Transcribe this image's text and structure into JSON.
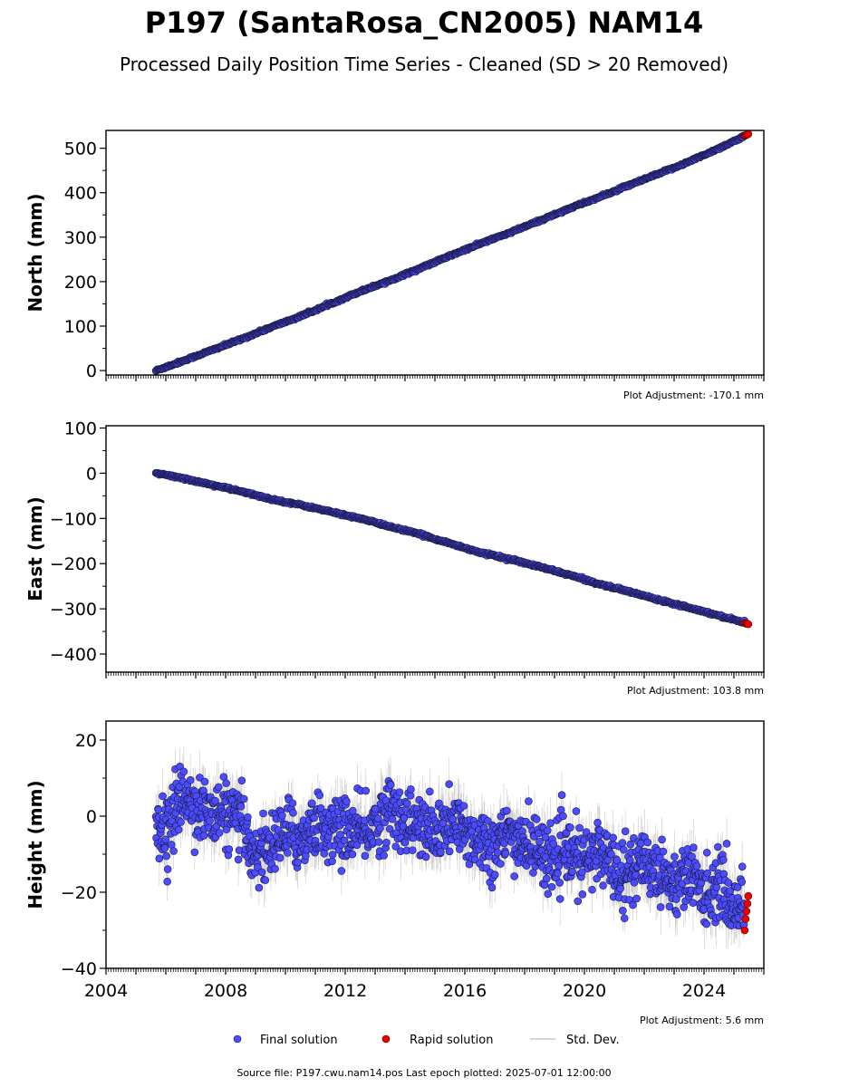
{
  "title": "P197 (SantaRosa_CN2005) NAM14",
  "subtitle": "Processed Daily Position Time Series - Cleaned (SD > 20 Removed)",
  "source_note": "Source file: P197.cwu.nam14.pos  Last epoch plotted: 2025-07-01 12:00:00",
  "legend": {
    "final": "Final solution",
    "rapid": "Rapid solution",
    "std": "Std. Dev."
  },
  "colors": {
    "final": "#4b4bff",
    "final_edge": "#1a1a40",
    "rapid": "#ee0000",
    "std": "#b4b4b4"
  },
  "chart_data": [
    {
      "type": "scatter",
      "ylabel": "North (mm)",
      "adjustment": "Plot Adjustment: -170.1 mm",
      "xlim": [
        2004,
        2026
      ],
      "ylim": [
        -10,
        540
      ],
      "yticks": [
        0,
        100,
        200,
        300,
        400,
        500
      ],
      "ytick_labels": [
        "0",
        "100",
        "200",
        "300",
        "400",
        "500"
      ],
      "xticks": [
        2004,
        2008,
        2012,
        2016,
        2020,
        2024
      ],
      "xtick_labels": [],
      "series": [
        {
          "role": "final",
          "x": [
            2005.67,
            2006.5,
            2007.5,
            2008.5,
            2009.5,
            2010.5,
            2011.5,
            2012.5,
            2013.5,
            2014.5,
            2015.5,
            2016.5,
            2017.5,
            2018.5,
            2019.5,
            2020.5,
            2021.5,
            2022.5,
            2023.5,
            2024.5,
            2025.35
          ],
          "y": [
            0,
            20,
            45,
            70,
            97,
            122,
            150,
            178,
            203,
            230,
            258,
            285,
            310,
            337,
            365,
            390,
            417,
            443,
            470,
            500,
            527
          ],
          "std": 4
        },
        {
          "role": "rapid",
          "x": [
            2025.36,
            2025.39,
            2025.42,
            2025.45,
            2025.48
          ],
          "y": [
            528,
            529,
            530,
            531,
            532
          ]
        }
      ]
    },
    {
      "type": "scatter",
      "ylabel": "East (mm)",
      "adjustment": "Plot Adjustment: 103.8 mm",
      "xlim": [
        2004,
        2026
      ],
      "ylim": [
        -440,
        105
      ],
      "yticks": [
        -400,
        -300,
        -200,
        -100,
        0,
        100
      ],
      "ytick_labels": [
        "−400",
        "−300",
        "−200",
        "−100",
        "0",
        "100"
      ],
      "xticks": [
        2004,
        2008,
        2012,
        2016,
        2020,
        2024
      ],
      "xtick_labels": [],
      "series": [
        {
          "role": "final",
          "x": [
            2005.67,
            2006.5,
            2007.5,
            2008.5,
            2009.5,
            2010.5,
            2011.5,
            2012.5,
            2013.5,
            2014.5,
            2015.5,
            2016.5,
            2017.5,
            2018.5,
            2019.5,
            2020.5,
            2021.5,
            2022.5,
            2023.5,
            2024.5,
            2025.35
          ],
          "y": [
            0,
            -10,
            -25,
            -40,
            -57,
            -70,
            -85,
            -100,
            -118,
            -135,
            -155,
            -175,
            -190,
            -207,
            -225,
            -245,
            -262,
            -280,
            -297,
            -315,
            -330
          ],
          "std": 4
        },
        {
          "role": "rapid",
          "x": [
            2025.36,
            2025.39,
            2025.42,
            2025.45,
            2025.48
          ],
          "y": [
            -331,
            -332,
            -333,
            -333,
            -334
          ]
        }
      ]
    },
    {
      "type": "scatter",
      "ylabel": "Height (mm)",
      "adjustment": "Plot Adjustment: 5.6 mm",
      "xlim": [
        2004,
        2026
      ],
      "ylim": [
        -40,
        25
      ],
      "yticks": [
        -40,
        -20,
        0,
        20
      ],
      "ytick_labels": [
        "−40",
        "−20",
        "0",
        "20"
      ],
      "xticks": [
        2004,
        2008,
        2012,
        2016,
        2020,
        2024
      ],
      "xtick_labels": [
        "2004",
        "2008",
        "2012",
        "2016",
        "2020",
        "2024"
      ],
      "series": [
        {
          "role": "final",
          "x": [
            2005.67,
            2006.0,
            2006.5,
            2007.0,
            2007.5,
            2008.0,
            2008.5,
            2009.0,
            2009.5,
            2010.0,
            2010.5,
            2011.0,
            2011.5,
            2012.0,
            2012.5,
            2013.0,
            2013.5,
            2014.0,
            2014.5,
            2015.0,
            2015.5,
            2016.0,
            2016.5,
            2017.0,
            2017.5,
            2018.0,
            2018.5,
            2019.0,
            2019.5,
            2020.0,
            2020.5,
            2021.0,
            2021.5,
            2022.0,
            2022.5,
            2023.0,
            2023.5,
            2024.0,
            2024.5,
            2025.0,
            2025.35
          ],
          "y": [
            0,
            -5,
            5,
            3,
            0,
            1,
            -2,
            -10,
            -8,
            -4,
            -6,
            -2,
            -4,
            -3,
            -5,
            -2,
            2,
            -1,
            -3,
            -5,
            -2,
            -4,
            -6,
            -8,
            -5,
            -7,
            -9,
            -11,
            -10,
            -12,
            -9,
            -13,
            -15,
            -12,
            -14,
            -18,
            -15,
            -20,
            -18,
            -24,
            -22
          ],
          "std": 5
        },
        {
          "role": "rapid",
          "x": [
            2025.36,
            2025.39,
            2025.42,
            2025.45,
            2025.48
          ],
          "y": [
            -30,
            -27,
            -25,
            -23,
            -21
          ]
        }
      ]
    }
  ]
}
